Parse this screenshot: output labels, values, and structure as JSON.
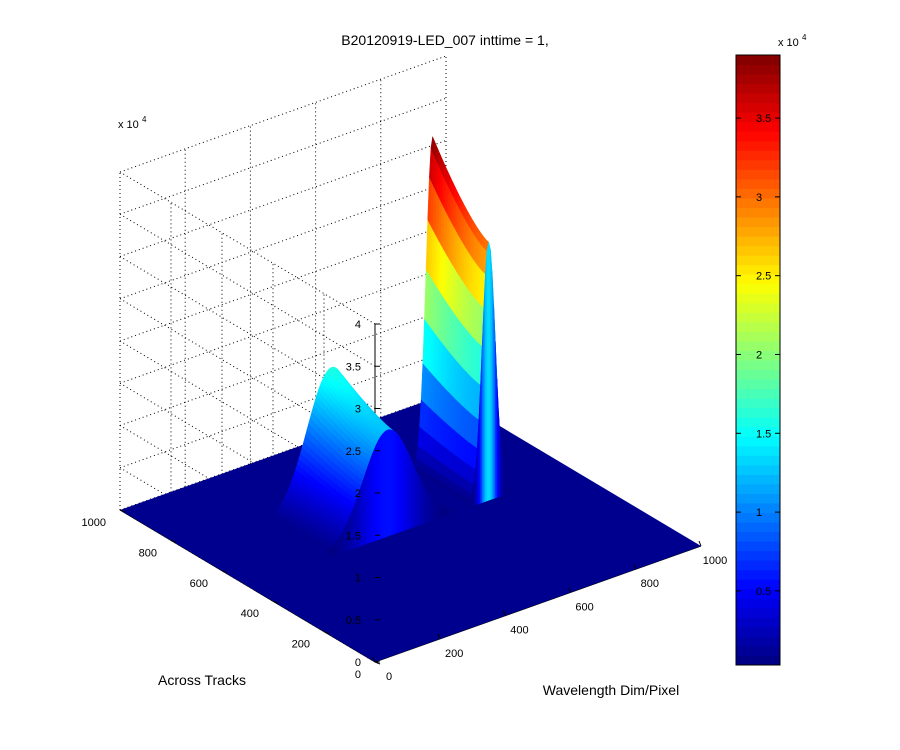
{
  "chart_data": {
    "type": "surface",
    "title": "B20120919-LED_007 inttime = 1,",
    "xlabel": "Wavelength Dim/Pixel",
    "ylabel": "Across Tracks",
    "zlabel": "",
    "x_ticks": [
      "0",
      "200",
      "400",
      "600",
      "800",
      "1000"
    ],
    "y_ticks": [
      "0",
      "200",
      "400",
      "600",
      "800",
      "1000"
    ],
    "z_ticks": [
      "0",
      "0.5",
      "1",
      "1.5",
      "2",
      "2.5",
      "3",
      "3.5",
      "4"
    ],
    "z_exponent": "x 10",
    "z_exponent_power": "4",
    "xlim": [
      0,
      1000
    ],
    "ylim": [
      0,
      1000
    ],
    "zlim": [
      0,
      40000
    ],
    "grid": true,
    "colormap": "jet",
    "colorbar": {
      "ticks": [
        "0.5",
        "1",
        "1.5",
        "2",
        "2.5",
        "3",
        "3.5"
      ],
      "exponent": "x 10",
      "exponent_power": "4",
      "range": [
        300,
        39000
      ]
    },
    "peaks": [
      {
        "name": "broad",
        "x_center": 430,
        "x_width": 75,
        "y_low": 500,
        "y_high": 720,
        "z_max": 16000
      },
      {
        "name": "sharp",
        "x_center": 740,
        "x_width": 20,
        "y_low": 500,
        "y_high": 720,
        "z_max": 39000
      }
    ],
    "baseline": 300,
    "colors": {
      "floor": "#00008f",
      "peak": "#800000"
    }
  }
}
